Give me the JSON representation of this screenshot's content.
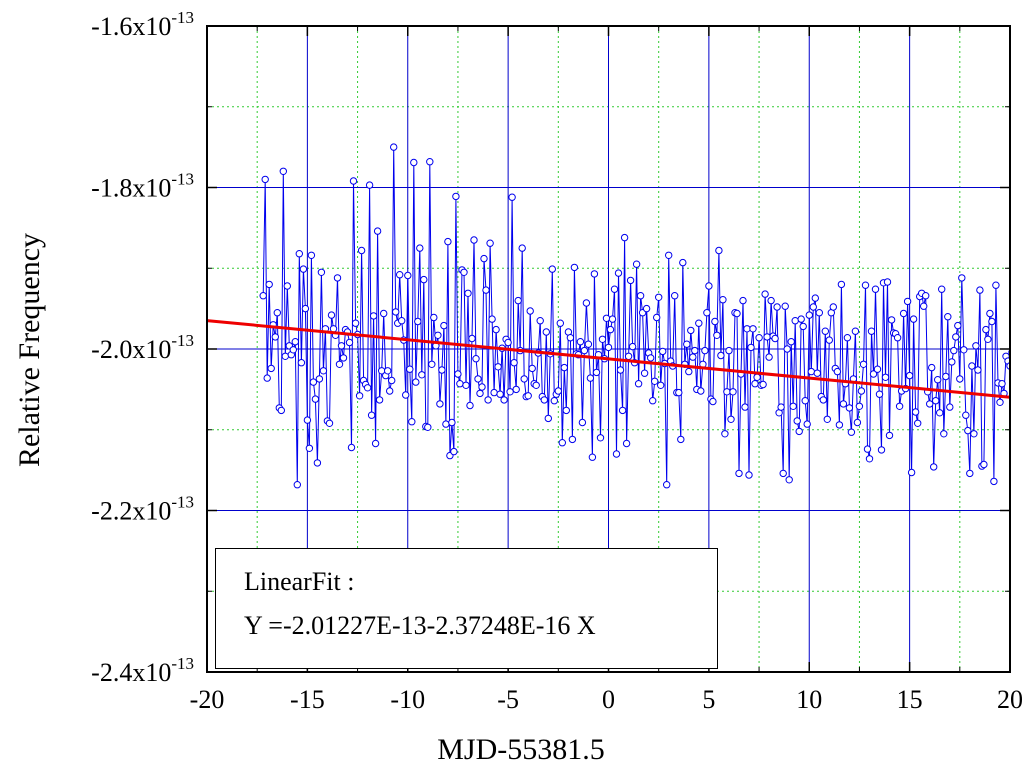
{
  "chart_data": {
    "type": "line",
    "xlabel": "MJD-55381.5",
    "ylabel": "Relative Frequency",
    "xlim": [
      -20,
      20
    ],
    "ylim": [
      -2.4e-13,
      -1.6e-13
    ],
    "x_ticks": [
      -20,
      -15,
      -10,
      -5,
      0,
      5,
      10,
      15,
      20
    ],
    "y_ticks": [
      {
        "value": -2.4e-13,
        "mantissa": "-2.4x10",
        "exponent": "-13"
      },
      {
        "value": -2.2e-13,
        "mantissa": "-2.2x10",
        "exponent": "-13"
      },
      {
        "value": -2e-13,
        "mantissa": "-2.0x10",
        "exponent": "-13"
      },
      {
        "value": -1.8e-13,
        "mantissa": "-1.8x10",
        "exponent": "-13"
      },
      {
        "value": -1.6e-13,
        "mantissa": "-1.6x10",
        "exponent": "-13"
      }
    ],
    "grid": {
      "major": true,
      "minor": true
    },
    "colors": {
      "series": "#0000ee",
      "fit": "#ee0000",
      "major_grid": "#0000cc",
      "minor_grid": "#33cc33",
      "frame": "#000000"
    },
    "series": [
      {
        "x_start": -17.2,
        "x_step": 0.1,
        "y_unit": 1e-13,
        "y": [
          -1.934,
          -1.79,
          -2.036,
          -1.92,
          -2.024,
          -1.97,
          -1.985,
          -1.955,
          -2.073,
          -2.076,
          -1.78,
          -2.009,
          -1.922,
          -1.996,
          -2.007,
          -2.001,
          -1.991,
          -2.168,
          -1.882,
          -2.017,
          -1.901,
          -1.95,
          -2.088,
          -2.123,
          -1.884,
          -2.041,
          -2.062,
          -2.141,
          -2.037,
          -1.905,
          -2.027,
          -1.975,
          -2.089,
          -2.092,
          -1.958,
          -1.975,
          -1.983,
          -1.912,
          -2.019,
          -1.996,
          -2.011,
          -1.976,
          -1.979,
          -1.992,
          -2.122,
          -1.792,
          -1.968,
          -1.982,
          -2.058,
          -1.878,
          -2.039,
          -2.044,
          -2.048,
          -1.797,
          -2.082,
          -1.959,
          -2.117,
          -1.854,
          -2.063,
          -2.027,
          -1.956,
          -2.033,
          -2.027,
          -2.052,
          -2.039,
          -1.75,
          -1.954,
          -1.968,
          -1.908,
          -1.965,
          -1.989,
          -2.057,
          -1.909,
          -2.025,
          -2.09,
          -1.769,
          -2.041,
          -1.966,
          -1.875,
          -2.032,
          -1.914,
          -2.096,
          -2.097,
          -1.768,
          -2.019,
          -1.961,
          -1.996,
          -1.983,
          -2.068,
          -2.026,
          -1.971,
          -2.093,
          -1.867,
          -2.132,
          -2.091,
          -2.127,
          -1.811,
          -2.031,
          -2.043,
          -1.902,
          -1.905,
          -2.045,
          -1.931,
          -2.07,
          -1.987,
          -1.865,
          -2.012,
          -2.037,
          -2.055,
          -2.047,
          -1.888,
          -1.927,
          -2.063,
          -1.869,
          -1.963,
          -2.054,
          -1.976,
          -2.022,
          -2.056,
          -1.999,
          -2.063,
          -1.988,
          -1.992,
          -2.053,
          -1.812,
          -2.017,
          -2.05,
          -1.94,
          -2.002,
          -1.875,
          -2.037,
          -2.059,
          -2.058,
          -1.953,
          -2.024,
          -2.043,
          -2.045,
          -2.005,
          -1.965,
          -2.059,
          -2.063,
          -1.979,
          -2.086,
          -2.006,
          -1.901,
          -2.064,
          -2.056,
          -2.052,
          -1.968,
          -2.116,
          -2.023,
          -2.076,
          -1.979,
          -1.986,
          -2.112,
          -1.899,
          -2.006,
          -2.007,
          -1.991,
          -2.091,
          -2.002,
          -1.943,
          -1.994,
          -2.036,
          -2.134,
          -1.907,
          -2.029,
          -2.007,
          -2.11,
          -1.988,
          -2.012,
          -1.962,
          -1.998,
          -1.976,
          -1.963,
          -1.926,
          -2.13,
          -1.906,
          -2.026,
          -2.076,
          -1.862,
          -2.117,
          -2.009,
          -1.915,
          -1.997,
          -2.017,
          -1.895,
          -2.043,
          -1.934,
          -1.955,
          -2.03,
          -1.95,
          -2.005,
          -2.011,
          -2.064,
          -2.04,
          -1.961,
          -1.936,
          -2.045,
          -2.003,
          -2.018,
          -2.168,
          -1.884,
          -2.015,
          -2.021,
          -1.934,
          -2.054,
          -2.054,
          -2.112,
          -1.893,
          -2.019,
          -1.994,
          -2.028,
          -1.977,
          -2.01,
          -2.002,
          -2.05,
          -1.968,
          -2.052,
          -2.019,
          -2.002,
          -1.955,
          -1.922,
          -2.062,
          -2.065,
          -1.966,
          -1.983,
          -1.878,
          -2.008,
          -1.939,
          -2.105,
          -2.053,
          -2.002,
          -2.087,
          -2.053,
          -1.955,
          -1.956,
          -2.154,
          -2.031,
          -1.94,
          -2.072,
          -1.975,
          -2.156,
          -1.998,
          -1.975,
          -2.043,
          -2.035,
          -1.986,
          -2.045,
          -2.044,
          -1.932,
          -1.985,
          -2.01,
          -1.94,
          -1.984,
          -1.987,
          -1.948,
          -2.079,
          -2.072,
          -2.154,
          -1.947,
          -2.0,
          -2.162,
          -1.991,
          -2.071,
          -1.965,
          -2.089,
          -2.102,
          -1.963,
          -1.972,
          -2.064,
          -2.093,
          -1.958,
          -2.028,
          -1.948,
          -1.937,
          -2.03,
          -1.955,
          -2.059,
          -2.063,
          -1.978,
          -2.087,
          -1.989,
          -1.955,
          -1.948,
          -2.024,
          -2.028,
          -2.094,
          -1.92,
          -2.068,
          -2.043,
          -1.986,
          -2.073,
          -2.103,
          -2.037,
          -1.978,
          -2.091,
          -2.071,
          -2.052,
          -2.019,
          -1.921,
          -2.124,
          -2.136,
          -1.978,
          -2.031,
          -1.926,
          -2.025,
          -2.056,
          -2.125,
          -1.918,
          -2.035,
          -1.917,
          -2.107,
          -1.964,
          -1.98,
          -1.981,
          -1.986,
          -2.071,
          -2.052,
          -1.956,
          -2.049,
          -1.941,
          -2.033,
          -2.153,
          -1.963,
          -2.078,
          -2.092,
          -1.935,
          -1.931,
          -1.947,
          -1.934,
          -2.053,
          -2.068,
          -2.023,
          -2.146,
          -2.064,
          -2.038,
          -2.079,
          -1.926,
          -2.105,
          -2.034,
          -1.96,
          -2.072,
          -2.016,
          -2.002,
          -1.985,
          -1.971,
          -2.037,
          -1.912,
          -2.001,
          -2.082,
          -2.101,
          -2.154,
          -2.021,
          -2.105,
          -1.996,
          -2.026,
          -1.927,
          -2.145,
          -2.143,
          -1.976,
          -1.988,
          -1.956,
          -1.966,
          -2.164,
          -1.921,
          -2.042,
          -2.066,
          -2.043,
          -2.055,
          -2.009,
          -2.015,
          -2.021,
          -2.004,
          -1.956,
          -2.005,
          -2.157,
          -1.982,
          -2.145,
          -2.062,
          -1.985,
          -2.055,
          -2.099,
          -2.01,
          -2.037,
          -2.077,
          -2.1,
          -2.019,
          -1.971,
          -2.043,
          -2.019,
          -1.972,
          -1.903,
          -1.968,
          -2.044,
          -2.144,
          -2.047,
          -2.079,
          -2.075,
          -2.055,
          -2.157,
          -2.04,
          -2.034,
          -2.066,
          -2.099,
          -1.964,
          -1.948,
          -2.017,
          -2.051,
          -2.032,
          -2.109,
          -2.121,
          -2.007,
          -2.069,
          -2.02,
          -2.039,
          -1.98,
          -1.97,
          -2.101,
          -1.945,
          -2.032,
          -1.922,
          -1.96,
          -1.931,
          -1.985,
          -2.074,
          -2.068,
          -1.946,
          -2.079,
          -2.06,
          -2.072,
          -2.107,
          -2.145,
          -2.048,
          -2.049,
          -2.108,
          -2.039,
          -1.962,
          -1.945,
          -2.071,
          -2.015,
          -1.937,
          -2.012,
          -2.086,
          -2.024,
          -1.998,
          -2.088,
          -2.025,
          -1.901,
          -1.976,
          -2.104,
          -2.021,
          -2.11,
          -2.046,
          -1.958,
          -2.125,
          -2.003,
          -2.166,
          -2.121,
          -2.067,
          -2.175,
          -2.022,
          -2.033,
          -2.148,
          -1.994,
          -2.059,
          -2.052,
          -1.998,
          -2.148,
          -2.144,
          -1.958,
          -2.107,
          -2.003,
          -2.084,
          -2.025,
          -1.967,
          -2.112,
          -2.06,
          -2.068,
          -2.041,
          -1.961,
          -2.024,
          -2.021,
          -2.049,
          -2.09,
          -2.051,
          -2.119,
          -2.171,
          -2.021,
          -1.968,
          -2.071,
          -1.993,
          -2.144,
          -2.105,
          -1.937,
          -2.084,
          -2.083,
          -1.979,
          -2.104,
          -2.056,
          -2.111,
          -2.107,
          -2.024,
          -2.082,
          -2.141,
          -2.012,
          -1.962,
          -1.992,
          -1.917,
          -2.015,
          -2.107,
          -2.082,
          -2.113,
          -2.04,
          -1.962,
          -2.081,
          -2.158,
          -2.155,
          -2.043,
          -2.129,
          -2.063,
          -2.083,
          -2.067,
          -2.13,
          -2.014,
          -1.994,
          -1.94,
          -1.922,
          -2.023,
          -2.105,
          -1.921,
          -2.08,
          -1.969,
          -2.093,
          -2.073,
          -2.001,
          -2.021,
          -2.001,
          -2.126,
          -1.973,
          -2.13,
          -2.065,
          -2.001,
          -2.114,
          -2.033,
          -2.044,
          -2.059,
          -2.084,
          -2.144,
          -2.043,
          -2.16,
          -1.996,
          -1.938,
          -1.987,
          -2.001,
          -2.071,
          -2.087,
          -2.038,
          -2.057,
          -2.17,
          -2.142,
          -1.982,
          -2.007,
          -2.144,
          -2.098,
          -2.023,
          -2.083,
          -1.941,
          -2.022,
          -1.938,
          -1.978,
          -2.14,
          -2.09,
          -2.047,
          -2.061,
          -1.973,
          -2.147,
          -2.006,
          -2.046,
          -2.093,
          -2.121,
          -1.987,
          -2.144,
          -2.143,
          -2.071,
          -1.936,
          -1.976,
          -1.917,
          -2.023,
          -2.024,
          -1.947,
          -2.019,
          -2.108,
          -2.137,
          -1.937,
          -2.042,
          -2.053,
          -2.05,
          -2.048,
          -2.097,
          -2.161,
          -2.016,
          -2.072,
          -2.063,
          -2.136,
          -2.004,
          -2.054,
          -2.115,
          -2.013,
          -1.995,
          -2.046,
          -2.073,
          -2.151,
          -2.06,
          -2.046,
          -2.003,
          -2.083,
          -1.998,
          -2.131,
          -2.017,
          -1.961,
          -2.047,
          -1.921,
          -1.983,
          -2.008,
          -1.908,
          -2.062,
          -1.962,
          -2.113,
          -2.069,
          -2.041,
          -2.029,
          -2.118,
          -2.157,
          -2.046,
          -1.978,
          -2.039,
          -2.079,
          -2.007,
          -1.983,
          -2.095,
          -1.967,
          -2.06,
          -2.12,
          -1.99,
          -1.997,
          -1.988,
          -2.031,
          -2.03,
          -2.001,
          -2.035,
          -2.055,
          -2.02,
          -1.936,
          -2.091,
          -2.021,
          -2.069,
          -2.081,
          -2.075,
          -2.031,
          -2.0,
          -2.125,
          -1.935,
          -2.014,
          -2.086,
          -1.96,
          -1.969,
          -2.071,
          -2.065,
          -2.07,
          -1.978,
          -2.043,
          -2.082,
          -1.939,
          -2.06,
          -2.152,
          -2.162,
          -2.073,
          -1.941,
          -2.048,
          -2.049,
          -1.905,
          -2.012,
          -2.021,
          -2.055,
          -2.038,
          -1.997,
          -2.104,
          -2.117,
          -2.067,
          -2.003,
          -1.965,
          -2.07,
          -2.05,
          -1.982,
          -2.06,
          -2.138,
          -2.074,
          -2.055,
          -1.975,
          -2.055,
          -1.939,
          -2.0,
          -2.039,
          -2.081,
          -2.147,
          -2.027,
          -2.167,
          -1.975,
          -2.004,
          -2.104,
          -1.992,
          -2.132,
          -2.145,
          -2.051,
          -2.052,
          -2.02,
          -2.015,
          -2.004,
          -1.999,
          -2.066,
          -2.14,
          -2.113,
          -2.027,
          -2.021,
          -1.933,
          -2.069,
          -2.123,
          -2.079,
          -2.05,
          -2.036,
          -2.019,
          -2.062,
          -2.118,
          -1.982,
          -2.042,
          -2.082,
          -2.079,
          -2.052,
          -2.14,
          -2.037,
          -2.154,
          -2.098,
          -2.041,
          -2.015,
          -2.088,
          -2.126,
          -2.045,
          -1.983,
          -2.078,
          -2.098,
          -1.947,
          -2.001,
          -2.038,
          -2.092,
          -2.153,
          -2.104,
          -2.132,
          -2.06,
          -2.103,
          -2.045,
          -2.023,
          -2.064,
          -2.163,
          -2.126,
          -1.982,
          -2.122,
          -2.047,
          -2.094,
          -2.068,
          -2.158,
          -2.035,
          -2.028,
          -2.159,
          -2.103,
          -2.085,
          -2.055,
          -1.935,
          -2.039,
          -2.02,
          -2.036,
          -2.092,
          -2.116,
          -2.13,
          -2.085,
          -2.033,
          -2.073,
          -2.049,
          -1.972,
          -2.084,
          -2.062,
          -2.126,
          -2.121,
          -2.009,
          -2.124,
          -2.059,
          -2.023,
          -2.008,
          -2.097,
          -2.128,
          -2.032,
          -2.027,
          -2.15,
          -2.107,
          -2.095,
          -2.1,
          -2.063,
          -1.987,
          -2.109,
          -2.044,
          -2.026,
          -2.046,
          -1.985,
          -2.069,
          -2.048,
          -2.099,
          -2.062,
          -2.012,
          -2.029,
          -2.104,
          -2.082,
          -2.089,
          -2.093,
          -2.058,
          -2.102,
          -2.129,
          -2.057,
          -2.04,
          -2.046,
          -1.999,
          -2.107,
          -2.054,
          -2.093,
          -2.014,
          -2.066,
          -2.064,
          -1.975,
          -2.095,
          -2.14,
          -2.009,
          -2.016,
          -2.108,
          -2.151,
          -2.142,
          -2.142,
          -1.984,
          -2.096,
          -2.043,
          -2.06,
          -2.107,
          -2.031,
          -2.048,
          -2.071,
          -2.084,
          -2.024,
          -2.09,
          -2.092,
          -2.112,
          -2.132,
          -2.039,
          -2.101,
          -2.117,
          -2.066,
          -2.016,
          -2.087,
          -2.014,
          -2.112,
          -2.016,
          -2.043,
          -2.05,
          -2.104,
          -2.12,
          -2.153,
          -2.057,
          -2.04,
          -2.059,
          -2.08,
          -2.102,
          -2.118,
          -2.101,
          -2.014,
          -2.097,
          -2.028,
          -2.09,
          -2.044,
          -2.02,
          -2.099,
          -2.064,
          -2.036,
          -2.022,
          -2.078,
          -2.048,
          -2.097,
          -2.028,
          -2.073,
          -2.071,
          -2.008,
          -2.092,
          -2.049,
          -2.086,
          -2.026,
          -2.094,
          -2.098,
          -2.088,
          -2.071,
          -2.061,
          -2.096,
          -2.013,
          -2.081,
          -2.126,
          -2.099,
          -2.081,
          -2.085,
          -2.049,
          -2.084,
          -2.092,
          -2.062,
          -2.019,
          -2.11,
          -2.123,
          -2.041,
          -2.04,
          -2.077,
          -2.045,
          -2.121,
          -2.064,
          -2.087,
          -2.068,
          -2.06,
          -2.07,
          -2.059,
          -2.124,
          -2.072,
          -2.008,
          -2.087,
          -2.045,
          -2.117,
          -2.128,
          -2.04,
          -2.111,
          -2.06,
          -2.084,
          -2.067,
          -2.074,
          -2.067,
          -2.122,
          -2.078,
          -2.076,
          -2.033,
          -2.074,
          -2.102,
          -2.058,
          -2.133,
          -2.091,
          -2.115,
          -2.092,
          -2.055,
          -2.088,
          -2.043,
          -2.104,
          -2.072,
          -2.064,
          -2.073,
          -2.055,
          -2.09,
          -2.133,
          -2.028,
          -2.127,
          -2.07,
          -2.081,
          -2.081,
          -2.081,
          -2.089,
          -2.074,
          -2.064,
          -2.082,
          -2.132,
          -2.05,
          -2.059,
          -2.085,
          -2.086,
          -2.045,
          -2.102,
          -2.068,
          -2.107,
          -2.066,
          -2.063,
          -2.069,
          -2.081,
          -2.097,
          -2.063,
          -2.084,
          -2.103,
          -2.067,
          -2.075,
          -2.087,
          -2.096,
          -2.083,
          -2.077,
          -2.082,
          -2.08,
          -2.069,
          -2.078,
          -2.074,
          -2.097,
          -2.088,
          -2.081,
          -2.077,
          -2.081,
          -2.085,
          -2.085,
          -2.084,
          -2.093,
          -2.083,
          -2.081,
          -2.077,
          -2.089,
          -2.085,
          -2.088,
          -2.083,
          -2.086,
          -2.084,
          -2.085,
          -2.087,
          -2.084,
          -2.086,
          -2.085,
          -2.085,
          -2.086
        ]
      }
    ],
    "fit": {
      "intercept": -2.01227e-13,
      "slope": -2.37248e-16,
      "label_line1": "LinearFit :",
      "label_line2": "Y =-2.01227E-13-2.37248E-16 X"
    }
  }
}
